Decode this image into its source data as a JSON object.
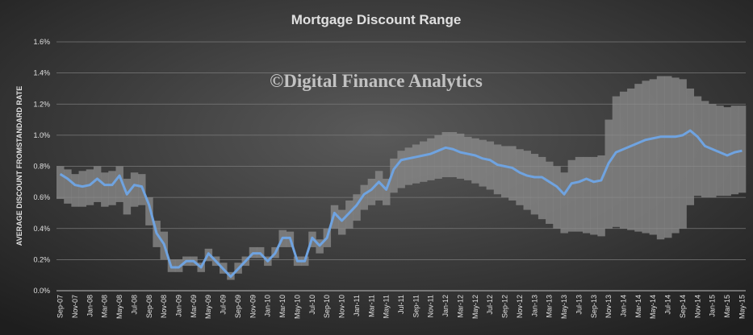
{
  "chart_data": {
    "type": "line",
    "title": "Mortgage  Discount  Range",
    "watermark": "©Digital Finance Analytics",
    "y_label": "AVERAGE DISCOUNT FROMSTANDARD RATE",
    "categories": [
      "Sep-07",
      null,
      "Nov-07",
      null,
      "Jan-08",
      null,
      "Mar-08",
      null,
      "May-08",
      null,
      "Jul-08",
      null,
      "Sep-08",
      null,
      "Nov-08",
      null,
      "Jan-09",
      null,
      "Mar-09",
      null,
      "May-09",
      null,
      "Jul-09",
      null,
      "Sep-09",
      null,
      "Nov-09",
      null,
      "Jan-10",
      null,
      "Mar-10",
      null,
      "May-10",
      null,
      "Jul-10",
      null,
      "Sep-10",
      null,
      "Nov-10",
      null,
      "Jan-11",
      null,
      "Mar-11",
      null,
      "May-11",
      null,
      "Jul-11",
      null,
      "Sep-11",
      null,
      "Nov-11",
      null,
      "Jan-12",
      null,
      "Mar-12",
      null,
      "May-12",
      null,
      "Jul-12",
      null,
      "Sep-12",
      null,
      "Nov-12",
      null,
      "Jan-13",
      null,
      "Mar-13",
      null,
      "May-13",
      null,
      "Jul-13",
      null,
      "Sep-13",
      null,
      "Nov-13",
      null,
      "Jan-14",
      null,
      "Mar-14",
      null,
      "May-14",
      null,
      "Jul-14",
      null,
      "Sep-14",
      null,
      "Nov-14",
      null,
      "Jan-15",
      null,
      "Mar-15",
      null,
      "May-15"
    ],
    "values": [
      0.75,
      0.72,
      0.68,
      0.67,
      0.68,
      0.72,
      0.68,
      0.68,
      0.74,
      0.62,
      0.68,
      0.67,
      0.55,
      0.37,
      0.3,
      0.15,
      0.15,
      0.19,
      0.19,
      0.15,
      0.24,
      0.19,
      0.14,
      0.09,
      0.14,
      0.19,
      0.24,
      0.24,
      0.19,
      0.24,
      0.34,
      0.34,
      0.19,
      0.19,
      0.34,
      0.29,
      0.34,
      0.5,
      0.45,
      0.5,
      0.55,
      0.62,
      0.65,
      0.7,
      0.65,
      0.78,
      0.84,
      0.85,
      0.86,
      0.87,
      0.88,
      0.9,
      0.92,
      0.91,
      0.89,
      0.88,
      0.87,
      0.85,
      0.84,
      0.81,
      0.8,
      0.79,
      0.76,
      0.74,
      0.73,
      0.73,
      0.7,
      0.67,
      0.62,
      0.69,
      0.7,
      0.72,
      0.7,
      0.71,
      0.82,
      0.89,
      0.91,
      0.93,
      0.95,
      0.97,
      0.98,
      0.99,
      0.99,
      0.99,
      1.0,
      1.03,
      0.99,
      0.93,
      0.91,
      0.89,
      0.87,
      0.89,
      0.9
    ],
    "color": "#6fa3e0",
    "band_high": [
      0.8,
      0.78,
      0.75,
      0.77,
      0.78,
      0.8,
      0.76,
      0.77,
      0.8,
      0.72,
      0.76,
      0.75,
      0.6,
      0.45,
      0.38,
      0.2,
      0.2,
      0.22,
      0.22,
      0.18,
      0.27,
      0.22,
      0.18,
      0.12,
      0.18,
      0.22,
      0.28,
      0.28,
      0.22,
      0.28,
      0.39,
      0.38,
      0.22,
      0.22,
      0.38,
      0.33,
      0.4,
      0.55,
      0.52,
      0.58,
      0.62,
      0.68,
      0.72,
      0.77,
      0.72,
      0.85,
      0.9,
      0.92,
      0.94,
      0.96,
      0.98,
      1.0,
      1.02,
      1.02,
      1.01,
      0.99,
      0.98,
      0.97,
      0.96,
      0.94,
      0.93,
      0.93,
      0.91,
      0.9,
      0.88,
      0.86,
      0.83,
      0.8,
      0.76,
      0.84,
      0.86,
      0.86,
      0.86,
      0.87,
      1.1,
      1.25,
      1.28,
      1.3,
      1.33,
      1.35,
      1.36,
      1.38,
      1.38,
      1.37,
      1.36,
      1.3,
      1.25,
      1.22,
      1.2,
      1.19,
      1.18,
      1.19,
      1.19
    ],
    "band_low": [
      0.59,
      0.56,
      0.54,
      0.54,
      0.55,
      0.57,
      0.54,
      0.55,
      0.57,
      0.49,
      0.54,
      0.55,
      0.42,
      0.28,
      0.2,
      0.12,
      0.12,
      0.16,
      0.16,
      0.12,
      0.19,
      0.16,
      0.11,
      0.07,
      0.11,
      0.16,
      0.21,
      0.21,
      0.16,
      0.21,
      0.28,
      0.28,
      0.16,
      0.16,
      0.28,
      0.24,
      0.28,
      0.4,
      0.36,
      0.4,
      0.45,
      0.52,
      0.55,
      0.58,
      0.55,
      0.63,
      0.66,
      0.68,
      0.69,
      0.7,
      0.71,
      0.72,
      0.73,
      0.73,
      0.72,
      0.71,
      0.69,
      0.67,
      0.65,
      0.62,
      0.6,
      0.58,
      0.55,
      0.52,
      0.49,
      0.46,
      0.43,
      0.4,
      0.37,
      0.38,
      0.38,
      0.37,
      0.36,
      0.35,
      0.4,
      0.41,
      0.4,
      0.39,
      0.38,
      0.37,
      0.36,
      0.33,
      0.34,
      0.37,
      0.4,
      0.55,
      0.61,
      0.6,
      0.6,
      0.61,
      0.61,
      0.62,
      0.63
    ],
    "band_color": "#8c8c8c",
    "ylim": [
      0,
      1.6
    ],
    "yticks": [
      {
        "value": 0,
        "label": "0.0%"
      },
      {
        "value": 0.2,
        "label": "0.2%"
      },
      {
        "value": 0.4,
        "label": "0.4%"
      },
      {
        "value": 0.6,
        "label": "0.6%"
      },
      {
        "value": 0.8,
        "label": "0.8%"
      },
      {
        "value": 1.0,
        "label": "1.0%"
      },
      {
        "value": 1.2,
        "label": "1.2%"
      },
      {
        "value": 1.4,
        "label": "1.4%"
      },
      {
        "value": 1.6,
        "label": "1.6%"
      }
    ],
    "grid": true
  }
}
